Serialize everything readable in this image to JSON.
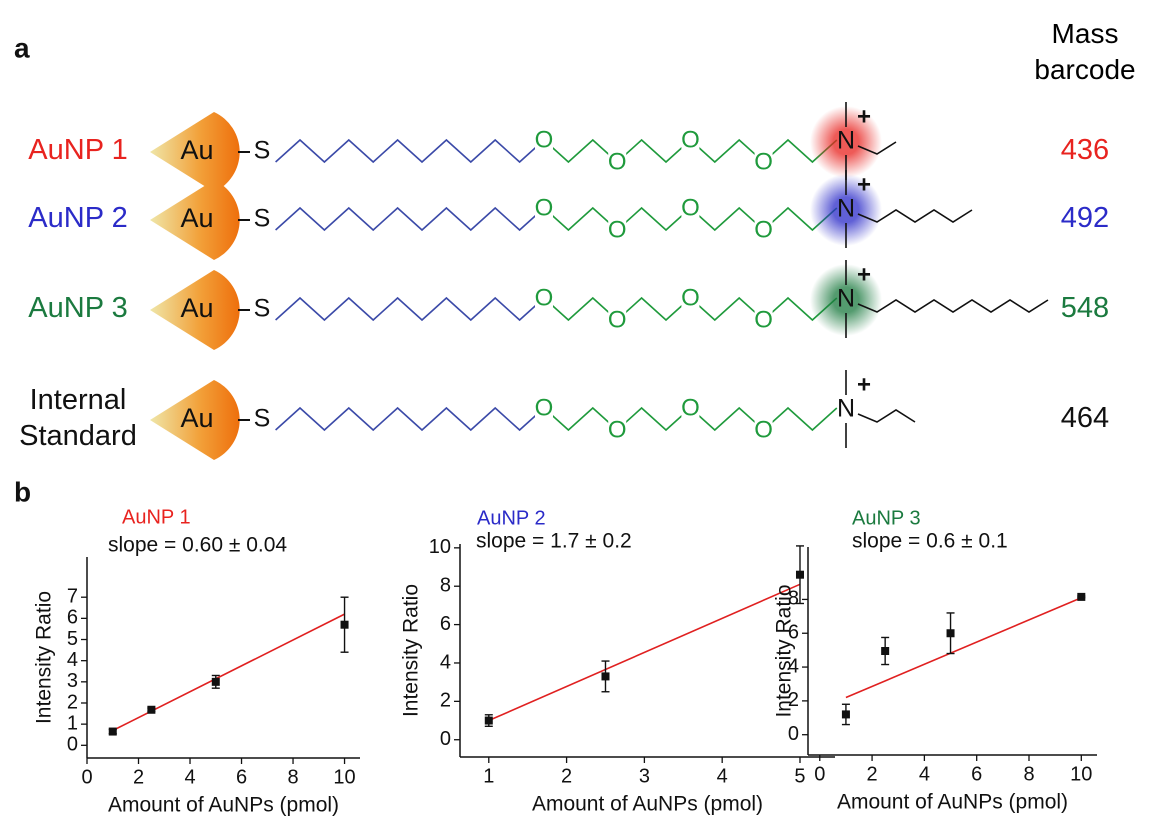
{
  "panel_a": {
    "label": "a",
    "header": [
      "Mass",
      "barcode"
    ],
    "nanoparticle_label": "Au",
    "thiol_label": "S",
    "nitrogen_label": "N",
    "charge_label": "+",
    "oxygen_label": "O",
    "rows": [
      {
        "label": "AuNP 1",
        "mass_barcode": 436,
        "color": "#e8231f",
        "glow": true
      },
      {
        "label": "AuNP 2",
        "mass_barcode": 492,
        "color": "#2b2bc8",
        "glow": true
      },
      {
        "label": "AuNP 3",
        "mass_barcode": 548,
        "color": "#1b7a3f",
        "glow": true
      },
      {
        "label": "Internal Standard",
        "mass_barcode": 464,
        "color": "#111111",
        "glow": false
      }
    ]
  },
  "panel_b": {
    "label": "b"
  },
  "chart_data": [
    {
      "type": "scatter",
      "title": "AuNP 1",
      "title_color": "#e8231f",
      "annotation": "slope = 0.60 ± 0.04",
      "xlabel": "Amount of AuNPs (pmol)",
      "ylabel": "Intensity Ratio",
      "x": [
        1,
        2.5,
        5,
        10
      ],
      "values": [
        0.65,
        1.68,
        3.0,
        5.7
      ],
      "errors": [
        0.1,
        0.08,
        0.3,
        1.3
      ],
      "color": "#111111",
      "fit": {
        "x": [
          1,
          10
        ],
        "values": [
          0.7,
          6.2
        ],
        "color": "#e02020"
      },
      "xlim": [
        0,
        10.6
      ],
      "xticks": [
        0,
        2,
        4,
        6,
        8,
        10
      ],
      "ylim": [
        -0.6,
        8.9
      ],
      "yticks": [
        0,
        1,
        2,
        3,
        4,
        5,
        6,
        7
      ]
    },
    {
      "type": "scatter",
      "title": "AuNP 2",
      "title_color": "#2b2bc8",
      "annotation": "slope = 1.7 ± 0.2",
      "xlabel": "Amount of AuNPs (pmol)",
      "ylabel": "Intensity Ratio",
      "x": [
        1,
        2.5,
        5
      ],
      "values": [
        1.0,
        3.3,
        8.6
      ],
      "errors": [
        0.3,
        0.8,
        1.5
      ],
      "color": "#111111",
      "fit": {
        "x": [
          1,
          5
        ],
        "values": [
          1.0,
          8.1
        ],
        "color": "#e02020"
      },
      "xlim": [
        0.63,
        5.45
      ],
      "xticks": [
        1,
        2,
        3,
        4,
        5
      ],
      "ylim": [
        -0.9,
        10.2
      ],
      "yticks": [
        0,
        2,
        4,
        6,
        8,
        10
      ]
    },
    {
      "type": "scatter",
      "title": "AuNP 3",
      "title_color": "#1b7a3f",
      "annotation": "slope = 0.6 ± 0.1",
      "xlabel": "Amount of AuNPs (pmol)",
      "ylabel": "Intensity Ratio",
      "x": [
        1,
        2.5,
        5,
        10
      ],
      "values": [
        1.2,
        4.95,
        6.0,
        8.15
      ],
      "errors": [
        0.6,
        0.8,
        1.2,
        0.05
      ],
      "color": "#111111",
      "fit": {
        "x": [
          1,
          10
        ],
        "values": [
          2.2,
          8.1
        ],
        "color": "#e02020"
      },
      "xlim": [
        -0.45,
        10.6
      ],
      "xticks": [
        0,
        2,
        4,
        6,
        8,
        10
      ],
      "ylim": [
        -1.2,
        11.1
      ],
      "yticks": [
        0,
        2,
        4,
        6,
        8
      ]
    }
  ]
}
